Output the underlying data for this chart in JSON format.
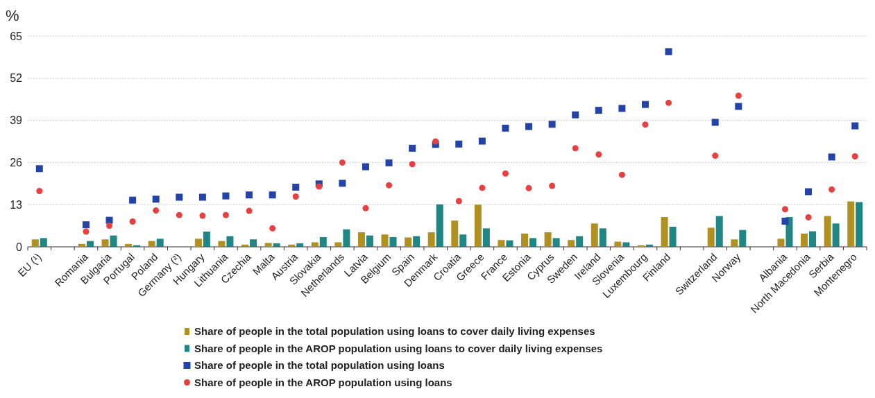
{
  "chart_data": {
    "type": "bar",
    "ylabel": "%",
    "categories": [
      "EU (¹)",
      null,
      "Romania",
      "Bulgaria",
      "Portugal",
      "Poland",
      "Germany (²)",
      "Hungary",
      "Lithuania",
      "Czechia",
      "Malta",
      "Austria",
      "Slovakia",
      "Netherlands",
      "Latvia",
      "Belgium",
      "Spain",
      "Denmark",
      "Croatia",
      "Greece",
      "France",
      "Estonia",
      "Cyprus",
      "Sweden",
      "Ireland",
      "Slovenia",
      "Luxembourg",
      "Finland",
      null,
      "Switzerland",
      "Norway",
      null,
      "Albania",
      "North Macedonia",
      "Serbia",
      "Montenegro"
    ],
    "series": [
      {
        "name": "Share of people in the total population using loans to cover daily living expenses",
        "color": "#b09020",
        "values": [
          2.3,
          null,
          0.9,
          2.3,
          0.9,
          1.8,
          null,
          2.5,
          1.8,
          0.7,
          1.2,
          0.7,
          1.4,
          1.4,
          4.5,
          3.8,
          2.9,
          4.5,
          8.1,
          13.0,
          2.1,
          4.1,
          4.5,
          2.1,
          7.2,
          1.6,
          0.5,
          9.2,
          null,
          5.9,
          2.3,
          null,
          2.5,
          4.1,
          9.5,
          14.0
        ]
      },
      {
        "name": "Share of people in the AROP population using loans to cover daily living expenses",
        "color": "#1f8585",
        "values": [
          2.7,
          null,
          1.8,
          3.5,
          0.5,
          2.5,
          null,
          4.7,
          3.3,
          2.3,
          1.1,
          1.1,
          3.0,
          5.4,
          3.5,
          3.0,
          3.3,
          13.1,
          3.8,
          5.7,
          2.0,
          2.7,
          2.7,
          3.3,
          5.7,
          1.4,
          0.7,
          6.2,
          null,
          9.5,
          5.2,
          null,
          9.2,
          4.8,
          7.2,
          13.8
        ]
      },
      {
        "name": "Share of people in the total population using loans",
        "type": "scatter",
        "marker": "square",
        "color": "#2443a8",
        "values": [
          24.1,
          null,
          6.8,
          8.2,
          14.4,
          14.7,
          15.3,
          15.3,
          15.7,
          16.0,
          16.0,
          18.4,
          19.4,
          19.6,
          24.7,
          25.9,
          30.4,
          31.6,
          31.7,
          32.6,
          36.6,
          37.1,
          37.8,
          40.7,
          42.1,
          42.7,
          43.9,
          60.2,
          null,
          38.4,
          43.3,
          null,
          7.9,
          17.0,
          27.7,
          37.3
        ]
      },
      {
        "name": "Share of people in the AROP population using loans",
        "type": "scatter",
        "marker": "circle",
        "color": "#e84040",
        "values": [
          17.2,
          null,
          4.7,
          6.5,
          7.8,
          11.2,
          9.8,
          9.6,
          9.8,
          11.1,
          5.7,
          15.5,
          18.6,
          26.0,
          11.9,
          19.0,
          25.5,
          32.5,
          14.1,
          18.2,
          22.6,
          18.1,
          18.8,
          30.4,
          28.5,
          22.2,
          37.7,
          44.4,
          null,
          28.1,
          46.6,
          null,
          11.6,
          9.1,
          17.7,
          27.9
        ]
      }
    ],
    "ylim": [
      0,
      65
    ],
    "yticks": [
      0,
      13,
      26,
      39,
      52,
      65
    ],
    "grid": "y",
    "legend": "bottom"
  }
}
